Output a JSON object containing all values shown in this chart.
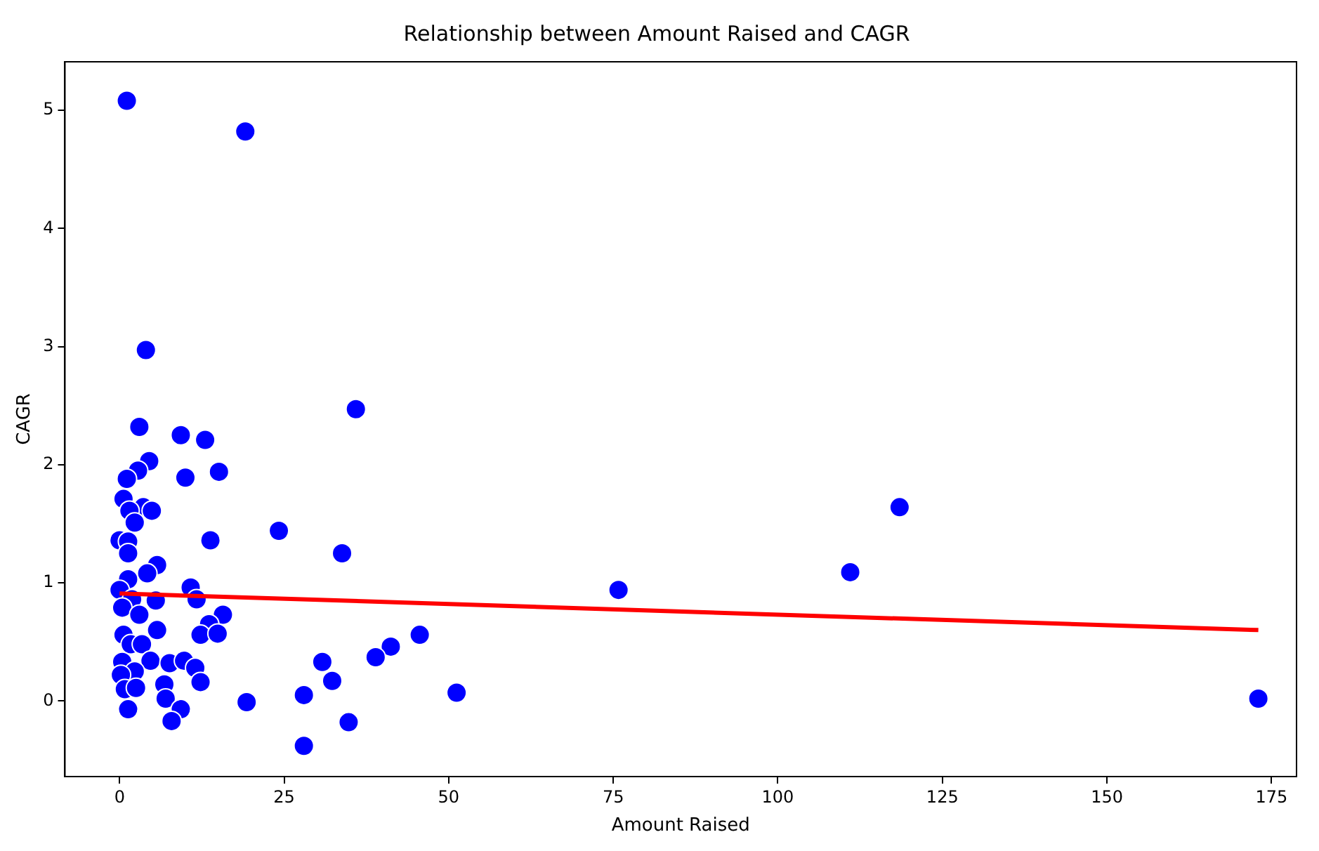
{
  "chart_data": {
    "type": "scatter",
    "title": "Relationship between Amount Raised and CAGR",
    "xlabel": "Amount Raised",
    "ylabel": "CAGR",
    "xlim": [
      -8.3,
      178.8
    ],
    "ylim": [
      -0.64,
      5.41
    ],
    "xticks": [
      0,
      25,
      50,
      75,
      100,
      125,
      150,
      175
    ],
    "yticks": [
      0,
      1,
      2,
      3,
      4,
      5
    ],
    "grid": false,
    "legend": false,
    "series": [
      {
        "type": "scatter",
        "marker": "circle",
        "color": "#0000ff",
        "x": [
          1.1,
          19.1,
          4.0,
          35.9,
          3.0,
          9.3,
          13.0,
          4.5,
          2.8,
          1.1,
          10.0,
          15.1,
          0.6,
          3.6,
          4.9,
          1.5,
          2.3,
          24.2,
          0,
          1.3,
          13.8,
          33.8,
          1.3,
          5.7,
          4.2,
          1.3,
          0,
          1.9,
          5.5,
          10.8,
          11.7,
          0.4,
          3.0,
          5.7,
          0.6,
          1.7,
          3.4,
          15.7,
          13.6,
          12.3,
          14.9,
          0.4,
          4.7,
          7.6,
          9.8,
          11.5,
          2.3,
          0.2,
          12.3,
          0.8,
          6.8,
          2.5,
          7.0,
          9.3,
          1.3,
          7.9,
          19.3,
          45.6,
          41.2,
          38.9,
          30.8,
          32.3,
          28.0,
          51.2,
          34.8,
          28.0,
          75.8,
          111.0,
          118.5,
          173.0
        ],
        "values": [
          5.08,
          4.82,
          2.97,
          2.47,
          2.32,
          2.25,
          2.21,
          2.03,
          1.95,
          1.88,
          1.89,
          1.94,
          1.71,
          1.64,
          1.61,
          1.61,
          1.51,
          1.44,
          1.36,
          1.35,
          1.36,
          1.25,
          1.25,
          1.15,
          1.08,
          1.03,
          0.94,
          0.86,
          0.85,
          0.96,
          0.86,
          0.79,
          0.73,
          0.6,
          0.56,
          0.48,
          0.48,
          0.73,
          0.65,
          0.56,
          0.57,
          0.33,
          0.34,
          0.32,
          0.34,
          0.28,
          0.25,
          0.22,
          0.16,
          0.1,
          0.14,
          0.11,
          0.02,
          -0.07,
          -0.07,
          -0.17,
          -0.01,
          0.56,
          0.46,
          0.37,
          0.33,
          0.17,
          0.05,
          0.07,
          -0.18,
          -0.38,
          0.94,
          1.09,
          1.64,
          0.02
        ]
      },
      {
        "type": "line",
        "color": "#ff0000",
        "x": [
          0,
          173
        ],
        "values": [
          0.91,
          0.6
        ]
      }
    ]
  }
}
